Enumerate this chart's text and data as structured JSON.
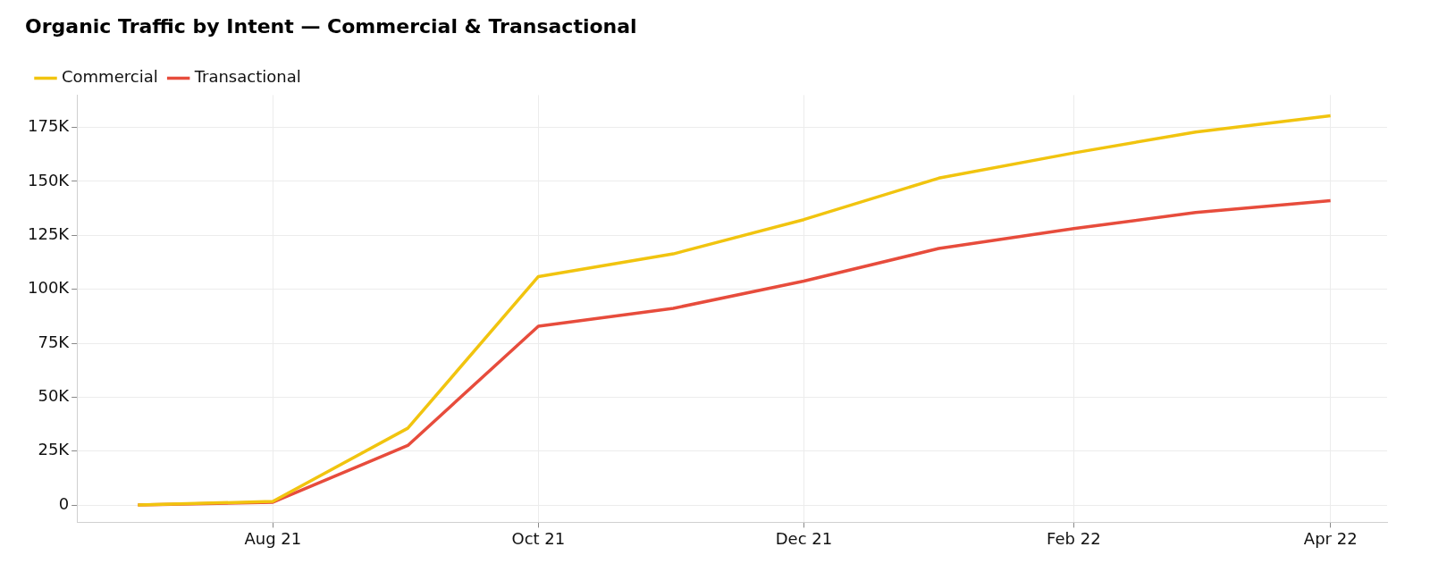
{
  "chart_data": {
    "type": "line",
    "title": "Organic Traffic by Intent — Commercial & Transactional",
    "x": [
      "2021-07-01",
      "2021-08-01",
      "2021-09-01",
      "2021-10-01",
      "2021-11-01",
      "2021-12-01",
      "2022-01-01",
      "2022-02-01",
      "2022-03-01",
      "2022-04-01"
    ],
    "series": [
      {
        "name": "Commercial",
        "color": "#f1c40f",
        "values": [
          0,
          1700,
          35600,
          105900,
          116400,
          132300,
          151500,
          163200,
          172900,
          180400
        ]
      },
      {
        "name": "Transactional",
        "color": "#e74c3c",
        "values": [
          0,
          1300,
          27600,
          82900,
          91200,
          103800,
          118900,
          128100,
          135600,
          141100
        ]
      }
    ],
    "xlim": [
      "2021-06-17",
      "2022-04-14"
    ],
    "xticks": [
      {
        "value": "2021-08-01",
        "label": "Aug 21"
      },
      {
        "value": "2021-10-01",
        "label": "Oct 21"
      },
      {
        "value": "2021-12-01",
        "label": "Dec 21"
      },
      {
        "value": "2022-02-01",
        "label": "Feb 22"
      },
      {
        "value": "2022-04-01",
        "label": "Apr 22"
      }
    ],
    "ylim": [
      -8000,
      190000
    ],
    "yticks": [
      {
        "value": 0,
        "label": "0"
      },
      {
        "value": 25000,
        "label": "25K"
      },
      {
        "value": 50000,
        "label": "50K"
      },
      {
        "value": 75000,
        "label": "75K"
      },
      {
        "value": 100000,
        "label": "100K"
      },
      {
        "value": 125000,
        "label": "125K"
      },
      {
        "value": 150000,
        "label": "150K"
      },
      {
        "value": 175000,
        "label": "175K"
      }
    ],
    "grid": true,
    "legend": "top left",
    "marker": "none",
    "line_style": "solid"
  }
}
